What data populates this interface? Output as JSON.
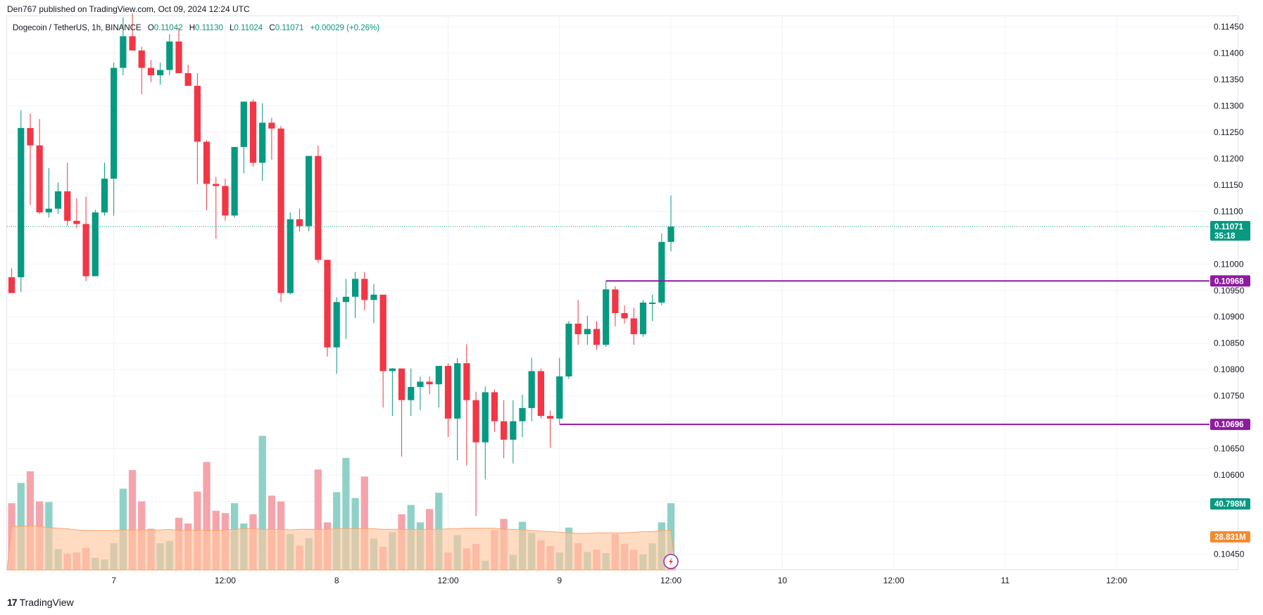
{
  "header": {
    "published": "Den767 published on TradingView.com, Oct 09, 2024 12:24 UTC"
  },
  "legend": {
    "symbol": "Dogecoin / TetherUS, 1h, BINANCE",
    "open_label": "O",
    "open": "0.11042",
    "high_label": "H",
    "high": "0.11130",
    "low_label": "L",
    "low": "0.11024",
    "close_label": "C",
    "close": "0.11071",
    "change": "+0.00029 (+0.26%)"
  },
  "footer": {
    "brand": "TradingView",
    "logo": "17"
  },
  "colors": {
    "up": "#089981",
    "down": "#f23645",
    "up_volume": "#8fd1c7",
    "down_volume": "#f5a4ab",
    "volume_ma_fill": "#ffc8a0",
    "volume_ma_tag": "#f7892c",
    "level_line": "#8e1aa0",
    "price_line": "#089981",
    "grid": "#f0f3fa"
  },
  "chart_data": {
    "type": "candlestick",
    "title": "Dogecoin / TetherUS, 1h, BINANCE",
    "y_ticks": [
      0.1145,
      0.114,
      0.1135,
      0.113,
      0.1125,
      0.112,
      0.1115,
      0.111,
      0.11,
      0.1095,
      0.109,
      0.1085,
      0.108,
      0.1075,
      0.1065,
      0.106,
      0.1055,
      0.1045
    ],
    "y_tick_labels": [
      "0.11450",
      "0.11400",
      "0.11350",
      "0.11300",
      "0.11250",
      "0.11200",
      "0.11150",
      "0.11100",
      "0.11000",
      "0.10950",
      "0.10900",
      "0.10850",
      "0.10800",
      "0.10750",
      "0.10650",
      "0.10600",
      "0.10550",
      "0.10450"
    ],
    "ylim": [
      0.1042,
      0.1147
    ],
    "x_ticks": [
      {
        "index": 11,
        "label": "7"
      },
      {
        "index": 23,
        "label": "12:00"
      },
      {
        "index": 35,
        "label": "8"
      },
      {
        "index": 47,
        "label": "12:00"
      },
      {
        "index": 59,
        "label": "9"
      },
      {
        "index": 71,
        "label": "12:00"
      },
      {
        "index": 83,
        "label": "10"
      },
      {
        "index": 95,
        "label": "12:00"
      },
      {
        "index": 107,
        "label": "11"
      },
      {
        "index": 119,
        "label": "12:00"
      }
    ],
    "x_range": [
      -0.5,
      129
    ],
    "candles": [
      [
        0.10975,
        0.10992,
        0.1095,
        0.10945
      ],
      [
        0.10975,
        0.11292,
        0.10947,
        0.11258
      ],
      [
        0.11258,
        0.11285,
        0.11112,
        0.11225
      ],
      [
        0.11225,
        0.11275,
        0.11095,
        0.11098
      ],
      [
        0.11098,
        0.11182,
        0.11088,
        0.11105
      ],
      [
        0.11105,
        0.11155,
        0.11095,
        0.11138
      ],
      [
        0.11138,
        0.11192,
        0.11072,
        0.11082
      ],
      [
        0.11082,
        0.11125,
        0.11068,
        0.11076
      ],
      [
        0.11076,
        0.11128,
        0.10968,
        0.10977
      ],
      [
        0.10977,
        0.11103,
        0.10977,
        0.11098
      ],
      [
        0.11098,
        0.11192,
        0.11092,
        0.11162
      ],
      [
        0.11162,
        0.11382,
        0.11092,
        0.11372
      ],
      [
        0.11372,
        0.11468,
        0.11358,
        0.11432
      ],
      [
        0.11432,
        0.11475,
        0.11405,
        0.11405
      ],
      [
        0.11405,
        0.11412,
        0.11322,
        0.11372
      ],
      [
        0.11372,
        0.11387,
        0.11345,
        0.11358
      ],
      [
        0.11358,
        0.11382,
        0.1134,
        0.11368
      ],
      [
        0.11368,
        0.11436,
        0.11358,
        0.11422
      ],
      [
        0.11422,
        0.11448,
        0.11362,
        0.11362
      ],
      [
        0.11362,
        0.11378,
        0.11338,
        0.11338
      ],
      [
        0.11338,
        0.11362,
        0.11152,
        0.11232
      ],
      [
        0.11232,
        0.11235,
        0.11102,
        0.11152
      ],
      [
        0.11152,
        0.11165,
        0.11048,
        0.11148
      ],
      [
        0.11148,
        0.11162,
        0.11082,
        0.11092
      ],
      [
        0.11092,
        0.11222,
        0.11088,
        0.11222
      ],
      [
        0.11222,
        0.11308,
        0.11172,
        0.11308
      ],
      [
        0.11308,
        0.11312,
        0.11185,
        0.11192
      ],
      [
        0.11192,
        0.11305,
        0.11158,
        0.11268
      ],
      [
        0.11268,
        0.11277,
        0.11198,
        0.11257
      ],
      [
        0.11257,
        0.11262,
        0.10928,
        0.10945
      ],
      [
        0.10945,
        0.11098,
        0.10942,
        0.11085
      ],
      [
        0.11085,
        0.11105,
        0.11062,
        0.11072
      ],
      [
        0.11072,
        0.11205,
        0.11062,
        0.11205
      ],
      [
        0.11205,
        0.11225,
        0.11002,
        0.11008
      ],
      [
        0.11008,
        0.11008,
        0.10825,
        0.10842
      ],
      [
        0.10842,
        0.10937,
        0.10792,
        0.10928
      ],
      [
        0.10928,
        0.10972,
        0.10858,
        0.10938
      ],
      [
        0.10938,
        0.10985,
        0.10898,
        0.10972
      ],
      [
        0.10972,
        0.10985,
        0.10912,
        0.10932
      ],
      [
        0.10932,
        0.10962,
        0.10888,
        0.10942
      ],
      [
        0.10942,
        0.10942,
        0.10728,
        0.10797
      ],
      [
        0.10797,
        0.10803,
        0.10712,
        0.10802
      ],
      [
        0.10802,
        0.10802,
        0.10635,
        0.10742
      ],
      [
        0.10742,
        0.10802,
        0.10712,
        0.10767
      ],
      [
        0.10767,
        0.10787,
        0.10723,
        0.10777
      ],
      [
        0.10777,
        0.10787,
        0.10753,
        0.10772
      ],
      [
        0.10772,
        0.108,
        0.10728,
        0.10807
      ],
      [
        0.10807,
        0.10812,
        0.10672,
        0.10707
      ],
      [
        0.10707,
        0.10822,
        0.10628,
        0.10812
      ],
      [
        0.10812,
        0.10848,
        0.10618,
        0.10742
      ],
      [
        0.10742,
        0.10758,
        0.10522,
        0.10662
      ],
      [
        0.10662,
        0.10768,
        0.10592,
        0.10757
      ],
      [
        0.10757,
        0.10762,
        0.10682,
        0.10702
      ],
      [
        0.10702,
        0.10742,
        0.10632,
        0.10667
      ],
      [
        0.10667,
        0.10742,
        0.10622,
        0.10702
      ],
      [
        0.10702,
        0.10752,
        0.10672,
        0.10727
      ],
      [
        0.10727,
        0.10822,
        0.10702,
        0.10797
      ],
      [
        0.10797,
        0.10802,
        0.10707,
        0.10712
      ],
      [
        0.10712,
        0.10722,
        0.10652,
        0.10707
      ],
      [
        0.10707,
        0.10822,
        0.10697,
        0.10787
      ],
      [
        0.10787,
        0.10892,
        0.10782,
        0.10887
      ],
      [
        0.10887,
        0.10932,
        0.10847,
        0.10867
      ],
      [
        0.10867,
        0.10902,
        0.10847,
        0.10877
      ],
      [
        0.10877,
        0.10892,
        0.10837,
        0.10847
      ],
      [
        0.10847,
        0.10968,
        0.10843,
        0.10952
      ],
      [
        0.10952,
        0.10958,
        0.10882,
        0.10907
      ],
      [
        0.10907,
        0.10922,
        0.10887,
        0.10897
      ],
      [
        0.10897,
        0.10917,
        0.10847,
        0.10867
      ],
      [
        0.10867,
        0.10932,
        0.10862,
        0.10927
      ],
      [
        0.10927,
        0.10942,
        0.10892,
        0.10927
      ],
      [
        0.10927,
        0.11058,
        0.10922,
        0.11042
      ],
      [
        0.11042,
        0.1113,
        0.11024,
        0.11071
      ]
    ],
    "volume_series": [
      {
        "name": "Volume",
        "last": "40.798M",
        "values": [
          11.5,
          15.0,
          17.0,
          11.8,
          11.7,
          3.6,
          2.8,
          3.0,
          3.8,
          2.1,
          1.8,
          4.6,
          14.0,
          17.2,
          11.8,
          7.1,
          4.6,
          5.0,
          9.0,
          8.0,
          13.5,
          18.6,
          10.2,
          9.8,
          11.5,
          8.0,
          9.6,
          23.1,
          12.8,
          11.8,
          6.2,
          4.2,
          5.5,
          17.3,
          8.2,
          13.4,
          19.3,
          12.4,
          16.1,
          5.4,
          4.0,
          6.5,
          9.6,
          11.2,
          8.2,
          10.5,
          13.3,
          3.0,
          6.0,
          3.7,
          4.5,
          1.6,
          6.9,
          8.8,
          2.6,
          8.3,
          6.4,
          5.1,
          4.1,
          3.0,
          7.3,
          4.6,
          3.1,
          3.5,
          2.9,
          6.2,
          4.5,
          3.5,
          2.7,
          4.6,
          8.2,
          11.5
        ]
      },
      {
        "name": "Volume MA",
        "last": "28.831M",
        "values": [
          7.5,
          7.5,
          7.6,
          7.5,
          7.3,
          7.2,
          7.1,
          6.9,
          6.8,
          6.8,
          6.8,
          6.8,
          6.9,
          6.9,
          6.9,
          6.9,
          6.9,
          7.0,
          6.8,
          6.8,
          6.8,
          6.8,
          6.8,
          6.9,
          7.0,
          7.1,
          7.1,
          7.0,
          7.0,
          7.0,
          6.9,
          7.0,
          7.0,
          7.0,
          7.0,
          7.1,
          7.1,
          7.1,
          7.1,
          7.1,
          7.0,
          7.0,
          7.0,
          7.0,
          7.0,
          7.0,
          7.0,
          7.1,
          7.1,
          7.2,
          7.2,
          7.2,
          7.2,
          7.0,
          7.0,
          6.9,
          6.8,
          6.7,
          6.6,
          6.5,
          6.4,
          6.3,
          6.3,
          6.4,
          6.4,
          6.4,
          6.4,
          6.5,
          6.6,
          6.6,
          6.8,
          6.8
        ]
      }
    ],
    "volume_max": 24,
    "horizontal_levels": [
      {
        "start_index": 64,
        "value": 0.10968,
        "label": "0.10968"
      },
      {
        "start_index": 59,
        "value": 0.10696,
        "label": "0.10696"
      }
    ],
    "last_price": {
      "value": 0.11071,
      "label": "0.11071",
      "countdown": "35:18"
    },
    "grid": true
  }
}
